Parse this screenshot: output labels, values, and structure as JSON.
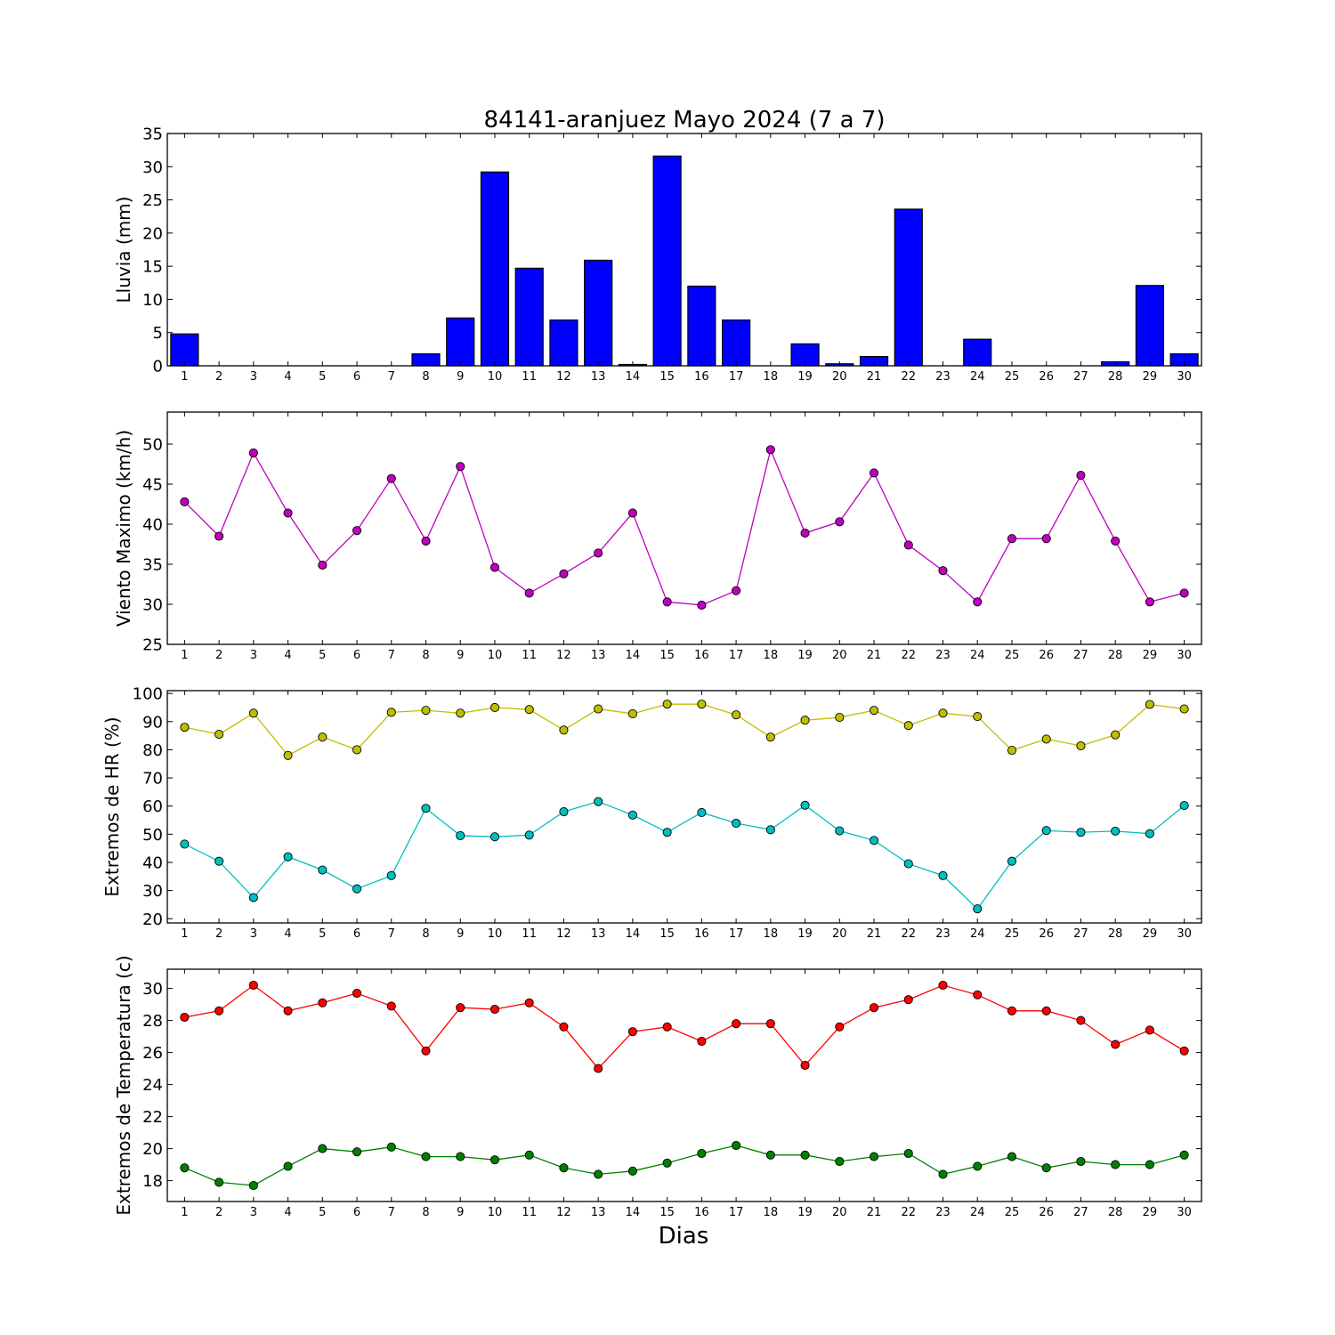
{
  "figure": {
    "title": "84141-aranjuez Mayo 2024  (7 a 7)",
    "xlabel": "Dias"
  },
  "chart_data": [
    {
      "type": "bar",
      "ylabel": "Lluvia (mm)",
      "ylim": [
        0,
        35
      ],
      "yticks": [
        0,
        5,
        10,
        15,
        20,
        25,
        30,
        35
      ],
      "categories": [
        1,
        2,
        3,
        4,
        5,
        6,
        7,
        8,
        9,
        10,
        11,
        12,
        13,
        14,
        15,
        16,
        17,
        18,
        19,
        20,
        21,
        22,
        23,
        24,
        25,
        26,
        27,
        28,
        29,
        30
      ],
      "series": [
        {
          "color": "#0000ff",
          "values": [
            4.8,
            0,
            0,
            0,
            0,
            0,
            0,
            1.8,
            7.2,
            29.2,
            14.7,
            6.9,
            15.9,
            0.2,
            31.6,
            12.0,
            6.9,
            0,
            3.3,
            0.3,
            1.4,
            23.6,
            0,
            4.0,
            0,
            0,
            0,
            0.6,
            12.1,
            1.8
          ]
        }
      ]
    },
    {
      "type": "line",
      "ylabel": "Viento Maximo (km/h)",
      "ylim": [
        25,
        54
      ],
      "yticks": [
        25,
        30,
        35,
        40,
        45,
        50
      ],
      "x": [
        1,
        2,
        3,
        4,
        5,
        6,
        7,
        8,
        9,
        10,
        11,
        12,
        13,
        14,
        15,
        16,
        17,
        18,
        19,
        20,
        21,
        22,
        23,
        24,
        25,
        26,
        27,
        28,
        29,
        30
      ],
      "series": [
        {
          "color": "#bf00bf",
          "values": [
            42.8,
            38.5,
            48.9,
            41.4,
            34.9,
            39.2,
            45.7,
            37.9,
            47.2,
            34.6,
            31.4,
            33.8,
            36.4,
            41.4,
            30.3,
            29.9,
            31.7,
            49.3,
            38.9,
            40.3,
            46.4,
            37.4,
            34.2,
            30.3,
            38.2,
            38.2,
            46.1,
            37.9,
            30.3,
            31.4
          ]
        }
      ]
    },
    {
      "type": "line",
      "ylabel": "Extremos de HR (%)",
      "ylim": [
        18.5,
        101
      ],
      "yticks": [
        20,
        30,
        40,
        50,
        60,
        70,
        80,
        90,
        100
      ],
      "x": [
        1,
        2,
        3,
        4,
        5,
        6,
        7,
        8,
        9,
        10,
        11,
        12,
        13,
        14,
        15,
        16,
        17,
        18,
        19,
        20,
        21,
        22,
        23,
        24,
        25,
        26,
        27,
        28,
        29,
        30
      ],
      "series": [
        {
          "color": "#bfbf00",
          "values": [
            88,
            85.5,
            93,
            78,
            84.5,
            80,
            93.3,
            94,
            93,
            95,
            94.3,
            87,
            94.5,
            92.8,
            96.2,
            96.2,
            92.4,
            84.5,
            90.5,
            91.5,
            94,
            88.6,
            93,
            91.8,
            79.8,
            83.8,
            81.4,
            85.3,
            96.1,
            94.5
          ]
        },
        {
          "color": "#00bfbf",
          "values": [
            46.5,
            40.4,
            27.5,
            42,
            37.3,
            30.6,
            35.3,
            59.2,
            49.5,
            49.1,
            49.7,
            58,
            61.6,
            56.8,
            50.7,
            57.7,
            53.9,
            51.6,
            60.3,
            51.2,
            47.8,
            39.5,
            35.3,
            23.5,
            40.4,
            51.3,
            50.7,
            51.1,
            50.2,
            60.2
          ]
        }
      ]
    },
    {
      "type": "line",
      "ylabel": "Extremos de Temperatura (c)",
      "ylim": [
        16.7,
        31.2
      ],
      "yticks": [
        18,
        20,
        22,
        24,
        26,
        28,
        30
      ],
      "x": [
        1,
        2,
        3,
        4,
        5,
        6,
        7,
        8,
        9,
        10,
        11,
        12,
        13,
        14,
        15,
        16,
        17,
        18,
        19,
        20,
        21,
        22,
        23,
        24,
        25,
        26,
        27,
        28,
        29,
        30
      ],
      "series": [
        {
          "color": "#ff0000",
          "values": [
            28.2,
            28.6,
            30.2,
            28.6,
            29.1,
            29.7,
            28.9,
            26.1,
            28.8,
            28.7,
            29.1,
            27.6,
            25,
            27.3,
            27.6,
            26.7,
            27.8,
            27.8,
            25.2,
            27.6,
            28.8,
            29.3,
            30.2,
            29.6,
            28.6,
            28.6,
            28,
            26.5,
            27.4,
            26.1
          ]
        },
        {
          "color": "#008000",
          "values": [
            18.8,
            17.9,
            17.7,
            18.9,
            20,
            19.8,
            20.1,
            19.5,
            19.5,
            19.3,
            19.6,
            18.8,
            18.4,
            18.6,
            19.1,
            19.7,
            20.2,
            19.6,
            19.6,
            19.2,
            19.5,
            19.7,
            18.4,
            18.9,
            19.5,
            18.8,
            19.2,
            19,
            19,
            19.6
          ]
        }
      ]
    }
  ]
}
